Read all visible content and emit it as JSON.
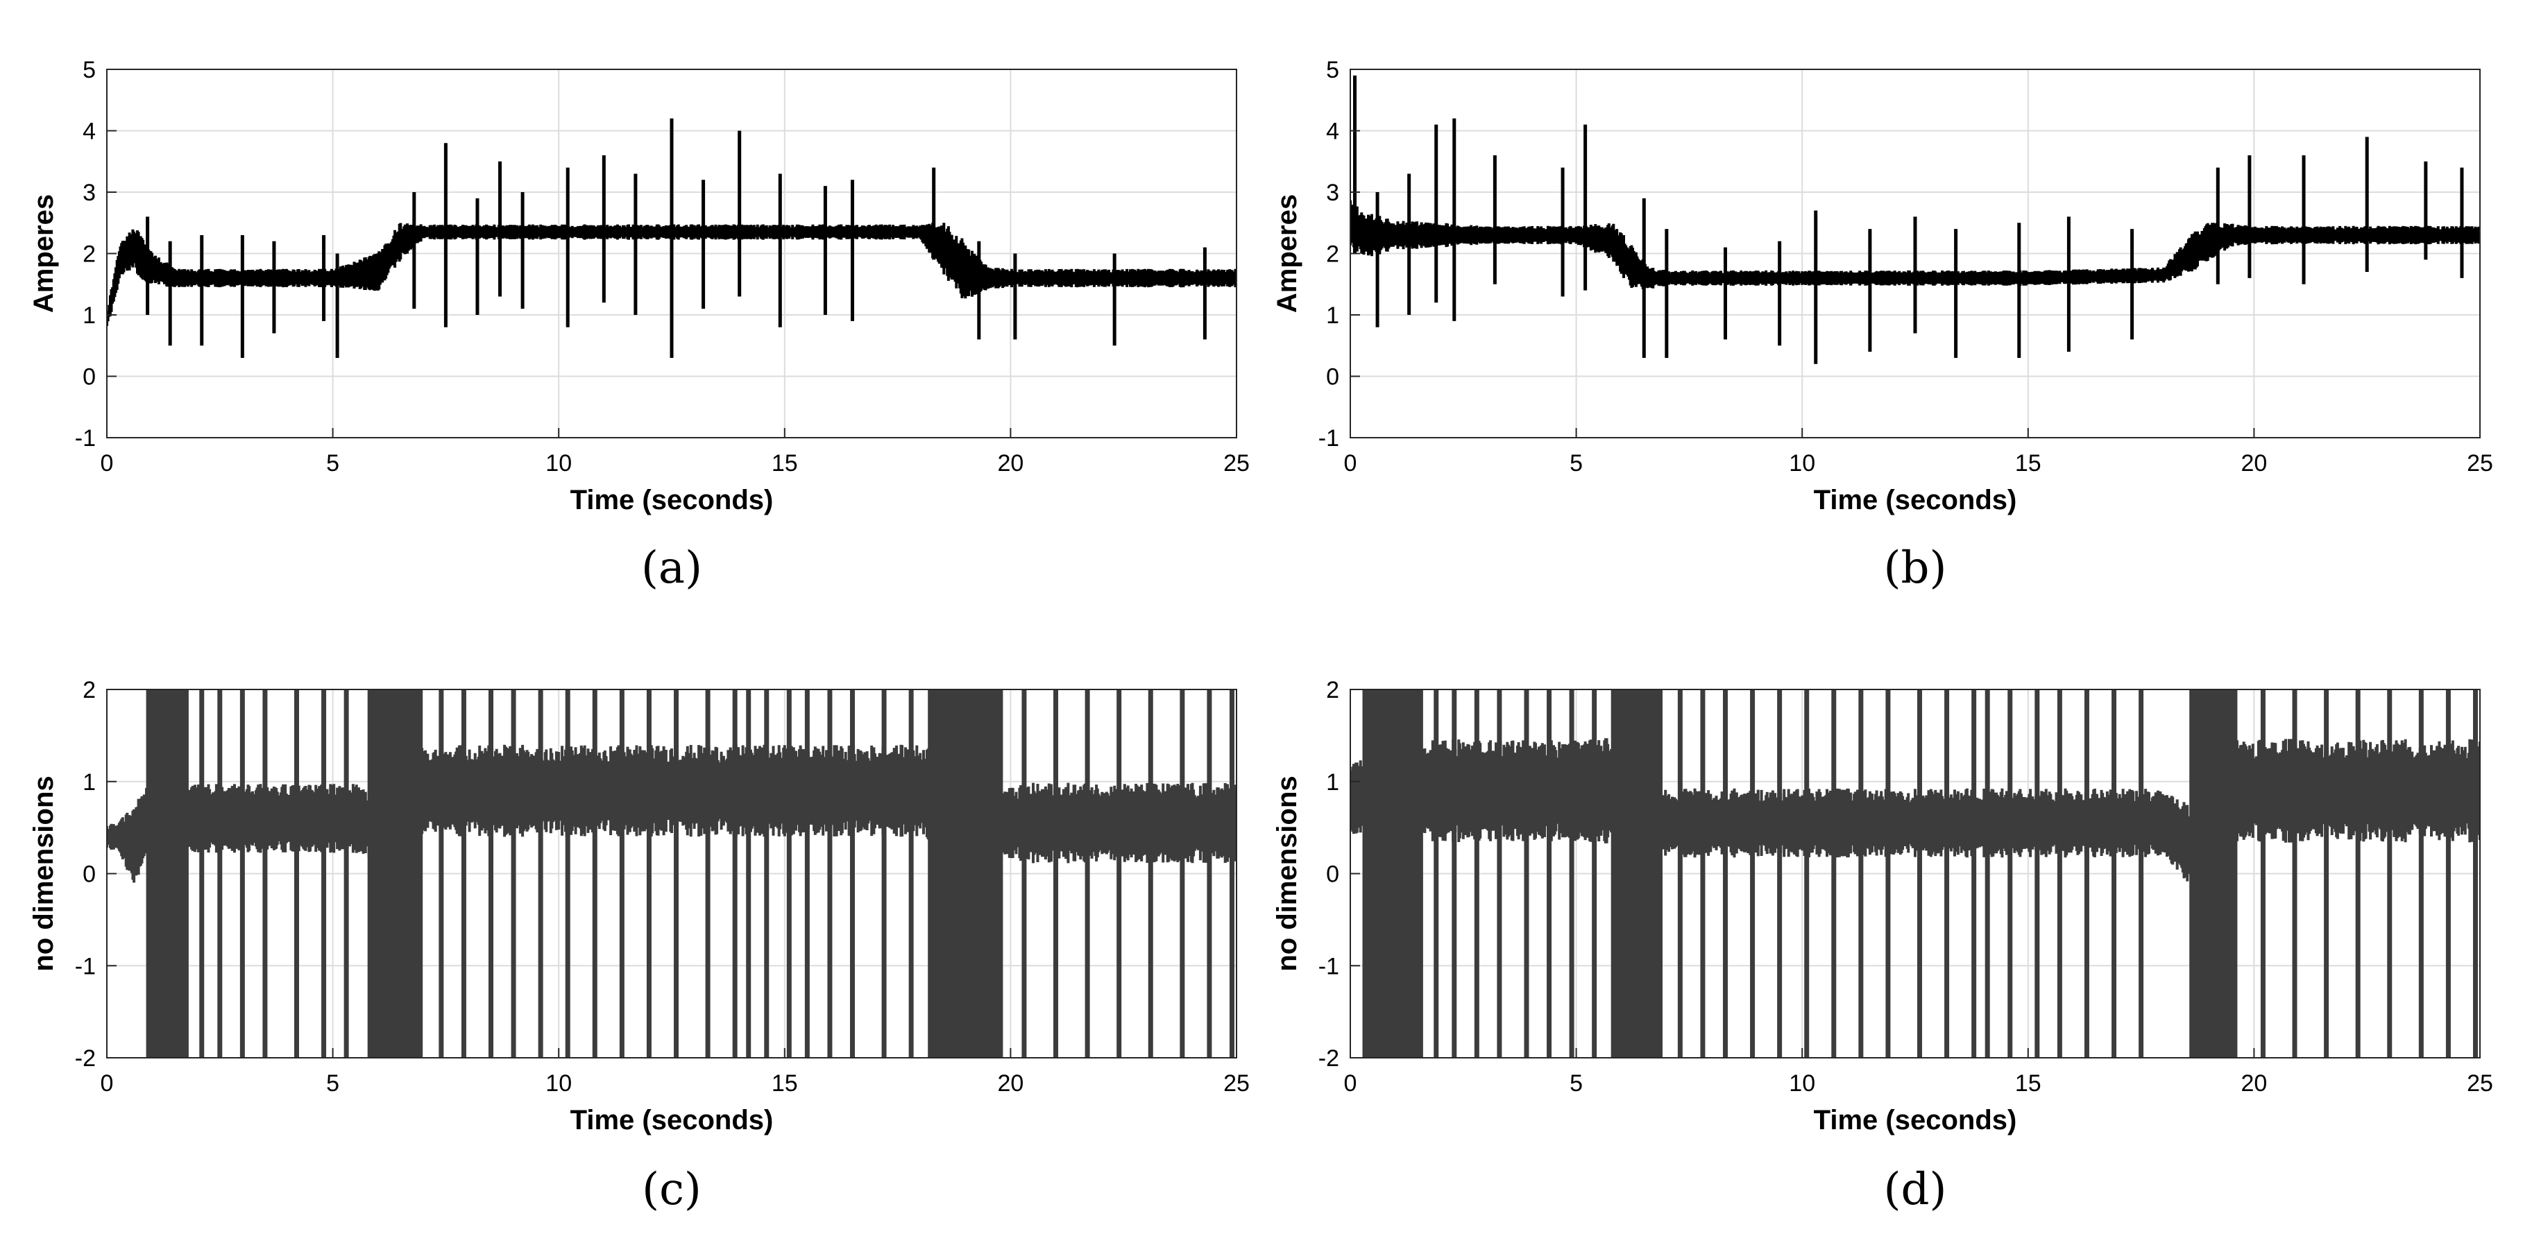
{
  "chart_data": [
    {
      "panel": "(a)",
      "type": "line",
      "xlabel": "Time (seconds)",
      "ylabel": "Amperes",
      "xlim": [
        0,
        25
      ],
      "ylim": [
        -1,
        5
      ],
      "xticks": [
        0,
        5,
        10,
        15,
        20,
        25
      ],
      "yticks": [
        -1,
        0,
        1,
        2,
        3,
        4,
        5
      ],
      "grid": true,
      "color": "#000000",
      "series": [
        {
          "x": [
            0,
            0.3,
            0.6,
            0.9,
            1.5,
            3,
            5,
            6,
            6.5,
            7,
            10,
            12.5,
            15,
            18,
            18.5,
            19,
            19.5,
            20,
            22.5,
            25
          ],
          "values": [
            0.9,
            1.9,
            2.1,
            1.8,
            1.6,
            1.6,
            1.6,
            1.7,
            2.2,
            2.35,
            2.35,
            2.35,
            2.35,
            2.35,
            2.1,
            1.7,
            1.6,
            1.6,
            1.6,
            1.6
          ],
          "band_halfwidth": [
            0.1,
            0.25,
            0.3,
            0.25,
            0.12,
            0.12,
            0.12,
            0.25,
            0.25,
            0.1,
            0.1,
            0.1,
            0.1,
            0.1,
            0.35,
            0.4,
            0.15,
            0.12,
            0.12,
            0.12
          ]
        }
      ],
      "spikes": [
        {
          "x": 0.9,
          "high": 2.6,
          "low": 1.0
        },
        {
          "x": 1.4,
          "high": 2.2,
          "low": 0.5
        },
        {
          "x": 2.1,
          "high": 2.3,
          "low": 0.5
        },
        {
          "x": 3.0,
          "high": 2.3,
          "low": 0.3
        },
        {
          "x": 3.7,
          "high": 2.2,
          "low": 0.7
        },
        {
          "x": 4.8,
          "high": 2.3,
          "low": 0.9
        },
        {
          "x": 5.1,
          "high": 2.0,
          "low": 0.3
        },
        {
          "x": 6.8,
          "high": 3.0,
          "low": 1.1
        },
        {
          "x": 7.5,
          "high": 3.8,
          "low": 0.8
        },
        {
          "x": 8.2,
          "high": 2.9,
          "low": 1.0
        },
        {
          "x": 8.7,
          "high": 3.5,
          "low": 1.3
        },
        {
          "x": 9.2,
          "high": 3.0,
          "low": 1.1
        },
        {
          "x": 10.2,
          "high": 3.4,
          "low": 0.8
        },
        {
          "x": 11.0,
          "high": 3.6,
          "low": 1.2
        },
        {
          "x": 11.7,
          "high": 3.3,
          "low": 1.0
        },
        {
          "x": 12.5,
          "high": 4.2,
          "low": 0.3
        },
        {
          "x": 13.2,
          "high": 3.2,
          "low": 1.1
        },
        {
          "x": 14.0,
          "high": 4.0,
          "low": 1.3
        },
        {
          "x": 14.9,
          "high": 3.3,
          "low": 0.8
        },
        {
          "x": 15.9,
          "high": 3.1,
          "low": 1.0
        },
        {
          "x": 16.5,
          "high": 3.2,
          "low": 0.9
        },
        {
          "x": 18.3,
          "high": 3.4,
          "low": 1.9
        },
        {
          "x": 19.3,
          "high": 2.2,
          "low": 0.6
        },
        {
          "x": 20.1,
          "high": 2.0,
          "low": 0.6
        },
        {
          "x": 22.3,
          "high": 2.0,
          "low": 0.5
        },
        {
          "x": 24.3,
          "high": 2.1,
          "low": 0.6
        }
      ]
    },
    {
      "panel": "(b)",
      "type": "line",
      "xlabel": "Time (seconds)",
      "ylabel": "Amperes",
      "xlim": [
        0,
        25
      ],
      "ylim": [
        -1,
        5
      ],
      "xticks": [
        0,
        5,
        10,
        15,
        20,
        25
      ],
      "yticks": [
        -1,
        0,
        1,
        2,
        3,
        4,
        5
      ],
      "grid": true,
      "color": "#000000",
      "series": [
        {
          "x": [
            0,
            0.3,
            1,
            3,
            5,
            5.8,
            6.2,
            6.6,
            7,
            10,
            15,
            18,
            18.6,
            19,
            19.5,
            20,
            22.5,
            25
          ],
          "values": [
            2.5,
            2.3,
            2.3,
            2.3,
            2.3,
            2.2,
            1.8,
            1.6,
            1.6,
            1.6,
            1.6,
            1.65,
            2.0,
            2.2,
            2.3,
            2.3,
            2.3,
            2.3
          ],
          "band_halfwidth": [
            0.3,
            0.3,
            0.2,
            0.12,
            0.12,
            0.25,
            0.3,
            0.15,
            0.1,
            0.1,
            0.1,
            0.1,
            0.25,
            0.25,
            0.15,
            0.12,
            0.12,
            0.12
          ]
        }
      ],
      "spikes": [
        {
          "x": 0.1,
          "high": 4.9,
          "low": 2.0
        },
        {
          "x": 0.6,
          "high": 3.0,
          "low": 0.8
        },
        {
          "x": 1.3,
          "high": 3.3,
          "low": 1.0
        },
        {
          "x": 1.9,
          "high": 4.1,
          "low": 1.2
        },
        {
          "x": 2.3,
          "high": 4.2,
          "low": 0.9
        },
        {
          "x": 3.2,
          "high": 3.6,
          "low": 1.5
        },
        {
          "x": 4.7,
          "high": 3.4,
          "low": 1.3
        },
        {
          "x": 5.2,
          "high": 4.1,
          "low": 1.4
        },
        {
          "x": 6.5,
          "high": 2.9,
          "low": 0.3
        },
        {
          "x": 7.0,
          "high": 2.4,
          "low": 0.3
        },
        {
          "x": 8.3,
          "high": 2.1,
          "low": 0.6
        },
        {
          "x": 9.5,
          "high": 2.2,
          "low": 0.5
        },
        {
          "x": 10.3,
          "high": 2.7,
          "low": 0.2
        },
        {
          "x": 11.5,
          "high": 2.4,
          "low": 0.4
        },
        {
          "x": 12.5,
          "high": 2.6,
          "low": 0.7
        },
        {
          "x": 13.4,
          "high": 2.4,
          "low": 0.3
        },
        {
          "x": 14.8,
          "high": 2.5,
          "low": 0.3
        },
        {
          "x": 15.9,
          "high": 2.6,
          "low": 0.4
        },
        {
          "x": 17.3,
          "high": 2.4,
          "low": 0.6
        },
        {
          "x": 19.2,
          "high": 3.4,
          "low": 1.5
        },
        {
          "x": 19.9,
          "high": 3.6,
          "low": 1.6
        },
        {
          "x": 21.1,
          "high": 3.6,
          "low": 1.5
        },
        {
          "x": 22.5,
          "high": 3.9,
          "low": 1.7
        },
        {
          "x": 23.8,
          "high": 3.5,
          "low": 1.9
        },
        {
          "x": 24.6,
          "high": 3.4,
          "low": 1.6
        }
      ]
    },
    {
      "panel": "(c)",
      "type": "line",
      "xlabel": "Time (seconds)",
      "ylabel": "no dimensions",
      "xlim": [
        0,
        25
      ],
      "ylim": [
        -2,
        2
      ],
      "xticks": [
        0,
        5,
        10,
        15,
        20,
        25
      ],
      "yticks": [
        -2,
        -1,
        0,
        1,
        2
      ],
      "grid": true,
      "color": "#3c3c3c",
      "series": [
        {
          "x": [
            0,
            0.3,
            0.6,
            0.9,
            2,
            4,
            5.5,
            6,
            6.5,
            7,
            10,
            15,
            18,
            18.5,
            19,
            19.8,
            20.5,
            22.5,
            25
          ],
          "values": [
            0.4,
            0.4,
            0.3,
            0.6,
            0.6,
            0.6,
            0.6,
            0.5,
            0.85,
            0.9,
            0.9,
            0.9,
            0.9,
            0.8,
            0.6,
            0.55,
            0.55,
            0.55,
            0.55
          ],
          "band_halfwidth": [
            0.1,
            0.15,
            0.35,
            0.3,
            0.3,
            0.3,
            0.3,
            0.3,
            0.4,
            0.4,
            0.4,
            0.4,
            0.4,
            0.45,
            0.35,
            0.3,
            0.35,
            0.35,
            0.35
          ]
        }
      ],
      "dense_zones": [
        [
          0.9,
          1.8
        ],
        [
          5.8,
          7.0
        ],
        [
          18.2,
          19.8
        ]
      ],
      "spike_x": [
        2.1,
        2.5,
        3.0,
        3.5,
        4.2,
        4.8,
        5.3,
        7.4,
        7.9,
        8.5,
        9.0,
        9.6,
        10.2,
        10.8,
        11.4,
        12.0,
        12.6,
        13.3,
        13.9,
        14.2,
        14.6,
        15.1,
        15.5,
        16.0,
        16.5,
        17.2,
        17.8,
        20.3,
        21.0,
        21.7,
        22.4,
        23.1,
        23.8,
        24.4,
        24.9
      ]
    },
    {
      "panel": "(d)",
      "type": "line",
      "xlabel": "Time (seconds)",
      "ylabel": "no dimensions",
      "xlim": [
        0,
        25
      ],
      "ylim": [
        -2,
        2
      ],
      "xticks": [
        0,
        5,
        10,
        15,
        20,
        25
      ],
      "yticks": [
        -2,
        -1,
        0,
        1,
        2
      ],
      "grid": true,
      "color": "#3c3c3c",
      "series": [
        {
          "x": [
            0,
            0.3,
            1,
            3,
            5,
            6,
            6.5,
            7,
            10,
            15,
            18,
            18.6,
            19,
            19.5,
            20,
            22.5,
            25
          ],
          "values": [
            0.8,
            0.85,
            0.9,
            0.9,
            0.9,
            0.9,
            0.6,
            0.55,
            0.55,
            0.55,
            0.55,
            0.3,
            0.6,
            0.9,
            0.9,
            0.9,
            0.9
          ],
          "band_halfwidth": [
            0.3,
            0.4,
            0.45,
            0.45,
            0.45,
            0.5,
            0.35,
            0.3,
            0.3,
            0.3,
            0.3,
            0.35,
            0.4,
            0.45,
            0.45,
            0.45,
            0.45
          ]
        }
      ],
      "dense_zones": [
        [
          0.3,
          1.6
        ],
        [
          5.8,
          6.9
        ],
        [
          18.6,
          19.6
        ]
      ],
      "spike_x": [
        1.9,
        2.3,
        2.8,
        3.3,
        3.9,
        4.4,
        4.9,
        5.4,
        7.3,
        7.8,
        8.3,
        8.9,
        9.5,
        10.1,
        10.7,
        11.3,
        11.9,
        12.6,
        13.2,
        13.8,
        14.1,
        14.6,
        15.2,
        15.7,
        16.3,
        16.9,
        17.5,
        20.2,
        20.9,
        21.6,
        22.3,
        23.0,
        23.7,
        24.3,
        24.9
      ]
    }
  ]
}
